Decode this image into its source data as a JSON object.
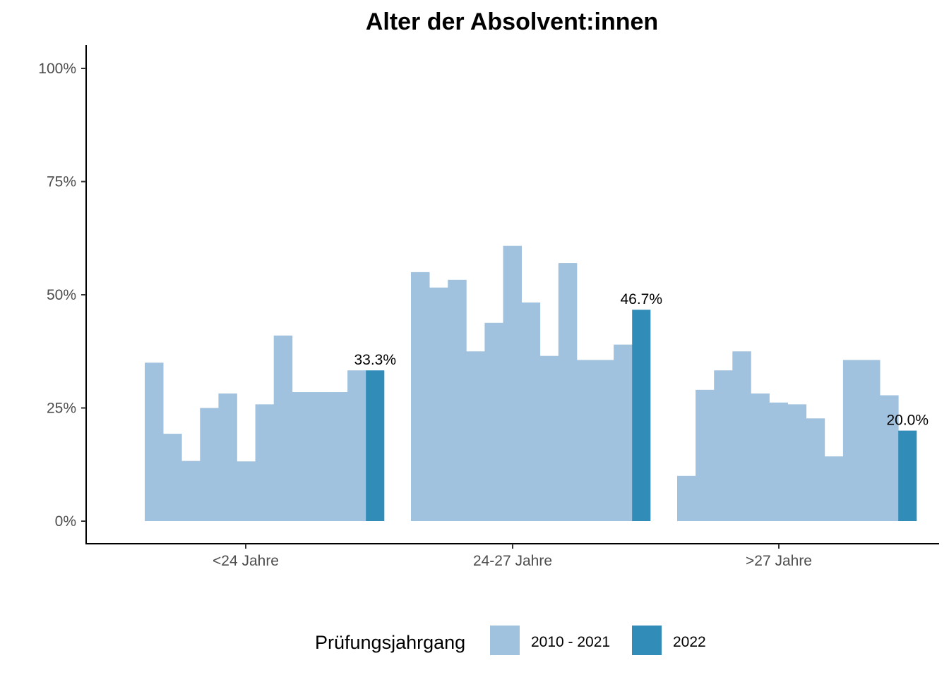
{
  "chart_data": {
    "type": "bar",
    "title": "Alter der Absolvent:innen",
    "xlabel": "",
    "ylabel": "",
    "ylim": [
      0,
      1.05
    ],
    "y_ticks": [
      0,
      0.25,
      0.5,
      0.75,
      1.0
    ],
    "y_tick_labels": [
      "0%",
      "25%",
      "50%",
      "75%",
      "100%"
    ],
    "grid": false,
    "categories": [
      "<24 Jahre",
      "24-27 Jahre",
      ">27 Jahre"
    ],
    "history_years": [
      "2010",
      "2011",
      "2012",
      "2013",
      "2014",
      "2015",
      "2016",
      "2017",
      "2018",
      "2019",
      "2020",
      "2021"
    ],
    "history_values": [
      [
        0.35,
        0.193,
        0.133,
        0.25,
        0.282,
        0.132,
        0.258,
        0.41,
        0.285,
        0.285,
        0.285,
        0.333
      ],
      [
        0.55,
        0.516,
        0.533,
        0.375,
        0.438,
        0.608,
        0.483,
        0.365,
        0.57,
        0.356,
        0.356,
        0.39
      ],
      [
        0.1,
        0.29,
        0.333,
        0.375,
        0.282,
        0.262,
        0.258,
        0.227,
        0.143,
        0.356,
        0.356,
        0.278
      ]
    ],
    "current_values": [
      0.333,
      0.467,
      0.2
    ],
    "current_labels": [
      "33.3%",
      "46.7%",
      "20.0%"
    ],
    "series": [
      {
        "name": "2010 - 2021",
        "color": "#a1c2de"
      },
      {
        "name": "2022",
        "color": "#318cb8"
      }
    ],
    "legend": {
      "title": "Prüfungsjahrgang",
      "position": "bottom"
    }
  }
}
